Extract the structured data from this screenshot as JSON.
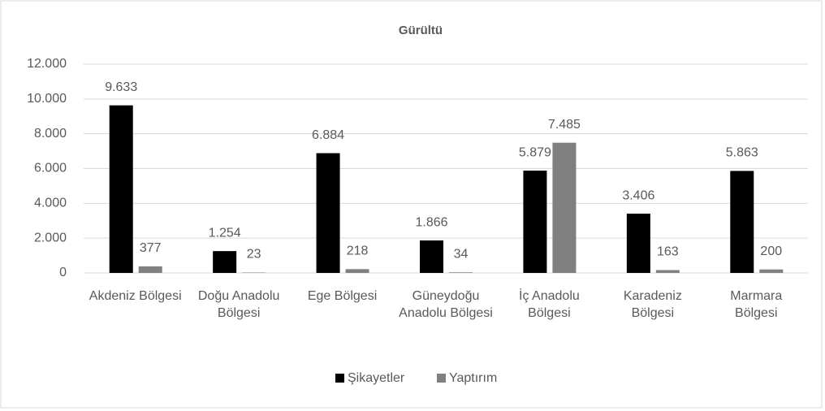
{
  "chart_data": {
    "type": "bar",
    "title": "Gürültü",
    "categories": [
      "Akdeniz Bölgesi",
      "Doğu Anadolu Bölgesi",
      "Ege Bölgesi",
      "Güneydoğu Anadolu Bölgesi",
      "İç Anadolu Bölgesi",
      "Karadeniz Bölgesi",
      "Marmara Bölgesi"
    ],
    "series": [
      {
        "name": "Şikayetler",
        "color": "#000000",
        "values": [
          9633,
          1254,
          6884,
          1866,
          5879,
          3406,
          5863
        ],
        "value_labels": [
          "9.633",
          "1.254",
          "6.884",
          "1.866",
          "5.879",
          "3.406",
          "5.863"
        ]
      },
      {
        "name": "Yaptırım",
        "color": "#808080",
        "values": [
          377,
          23,
          218,
          34,
          7485,
          163,
          200
        ],
        "value_labels": [
          "377",
          "23",
          "218",
          "34",
          "7.485",
          "163",
          "200"
        ]
      }
    ],
    "ylim": [
      0,
      12000
    ],
    "yticks": [
      0,
      {
        "value": 2000,
        "label": "2.000"
      },
      {
        "value": 4000,
        "label": "4.000"
      },
      {
        "value": 6000,
        "label": "6.000"
      },
      {
        "value": 8000,
        "label": "8.000"
      },
      {
        "value": 10000,
        "label": "10.000"
      },
      {
        "value": 12000,
        "label": "12.000"
      }
    ],
    "grid": true,
    "legend": "bottom"
  }
}
